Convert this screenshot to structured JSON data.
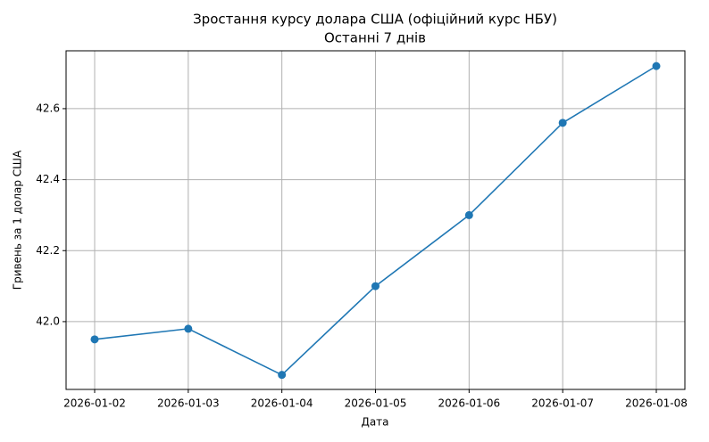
{
  "chart_data": {
    "type": "line",
    "title": "Зростання курсу долара США (офіційний курс НБУ)",
    "subtitle": "Останні 7 днів",
    "x_label": "Дата",
    "y_label": "Гривень за 1 долар США",
    "categories": [
      "2026-01-02",
      "2026-01-03",
      "2026-01-04",
      "2026-01-05",
      "2026-01-06",
      "2026-01-07",
      "2026-01-08"
    ],
    "values": [
      41.95,
      41.98,
      41.85,
      42.1,
      42.3,
      42.56,
      42.72
    ],
    "color": "#1f77b4",
    "ylim": [
      41.809,
      42.763
    ],
    "yticks": [
      {
        "value": 42,
        "label": "42.0"
      },
      42.2,
      42.4,
      42.6
    ],
    "grid": true
  }
}
